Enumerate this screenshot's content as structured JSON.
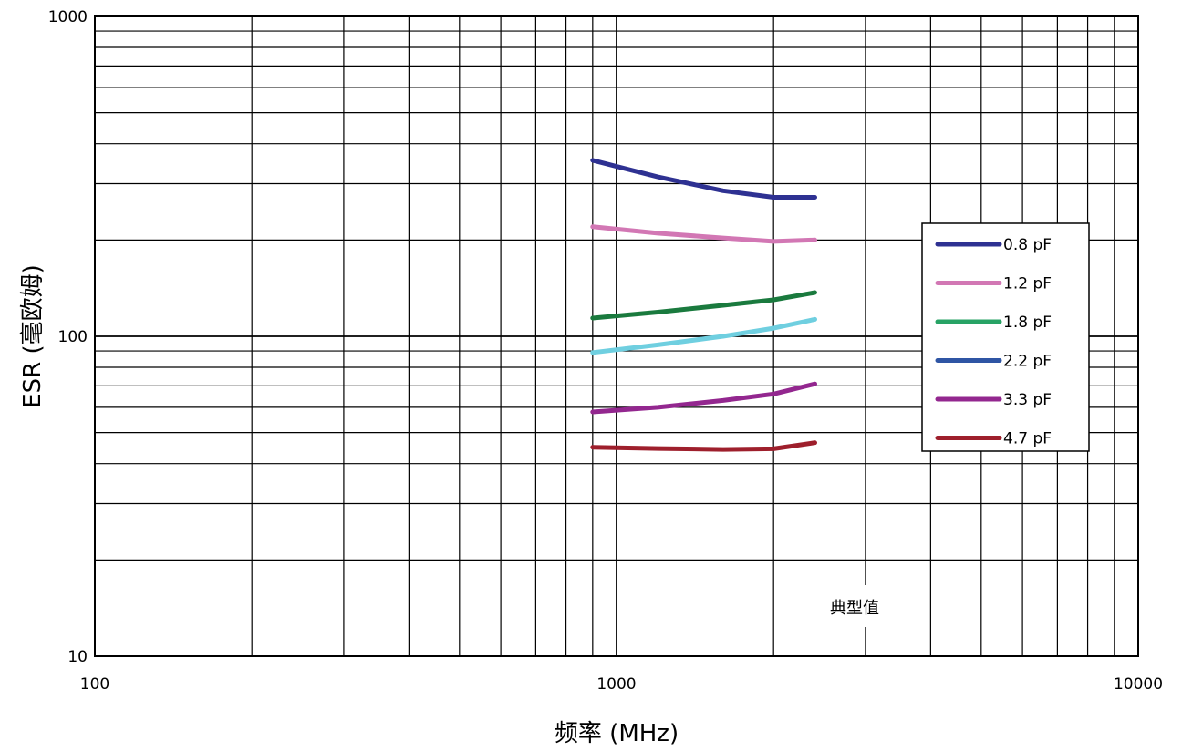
{
  "chart_data": {
    "type": "line",
    "xlabel": "频率 (MHz)",
    "ylabel": "ESR (毫欧姆)",
    "x_scale": "log",
    "y_scale": "log",
    "xlim": [
      100,
      10000
    ],
    "ylim": [
      10,
      1000
    ],
    "x_ticks": [
      "100",
      "1000",
      "10000"
    ],
    "y_ticks": [
      "10",
      "100",
      "1000"
    ],
    "grid": true,
    "legend_position": "right",
    "annotation": "典型值",
    "series": [
      {
        "name": "0.8 pF",
        "color": "#2e3192",
        "x": [
          900,
          1200,
          1600,
          2000,
          2400
        ],
        "y": [
          355,
          315,
          285,
          272,
          272
        ]
      },
      {
        "name": "1.2 pF",
        "color": "#d277b4",
        "x": [
          900,
          1200,
          1600,
          2000,
          2400
        ],
        "y": [
          220,
          210,
          203,
          198,
          200
        ]
      },
      {
        "name": "1.8 pF",
        "color": "#1a7a3e",
        "x": [
          900,
          1200,
          1600,
          2000,
          2400
        ],
        "y": [
          114,
          119,
          125,
          130,
          137
        ]
      },
      {
        "name": "2.2 pF",
        "color": "#6fcfe0",
        "x": [
          900,
          1200,
          1600,
          2000,
          2400
        ],
        "y": [
          89,
          94,
          100,
          106,
          113
        ]
      },
      {
        "name": "3.3 pF",
        "color": "#93278f",
        "x": [
          900,
          1200,
          1600,
          2000,
          2400
        ],
        "y": [
          58,
          60,
          63,
          66,
          71
        ]
      },
      {
        "name": "4.7 pF",
        "color": "#9e1f2c",
        "x": [
          900,
          1200,
          1600,
          2000,
          2400
        ],
        "y": [
          45,
          44.6,
          44.3,
          44.5,
          46.5
        ]
      }
    ],
    "legend_swatch_colors": [
      "#2e3192",
      "#d277b4",
      "#27a365",
      "#2f55a4",
      "#93278f",
      "#9e1f2c"
    ]
  }
}
